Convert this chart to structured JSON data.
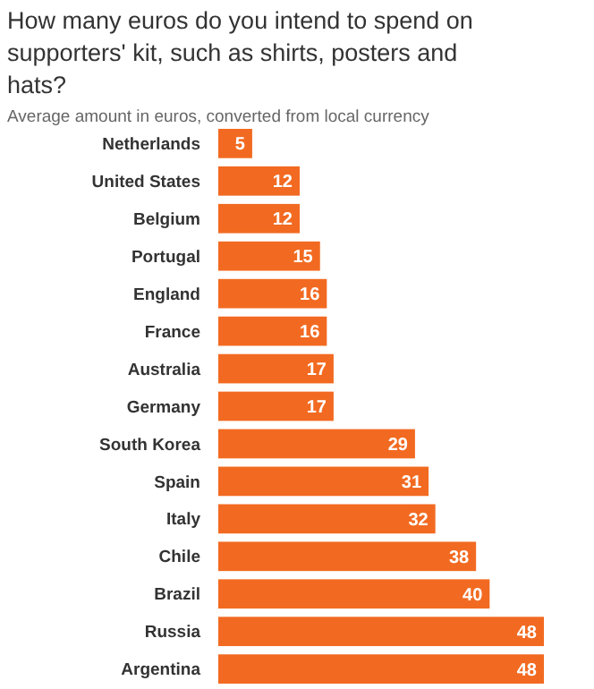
{
  "chart_data": {
    "type": "bar",
    "orientation": "horizontal",
    "title": "How many euros do you intend to spend on supporters' kit, such as shirts, posters and hats?",
    "subtitle": "Average amount in euros, converted from local currency",
    "categories": [
      "Netherlands",
      "United States",
      "Belgium",
      "Portugal",
      "England",
      "France",
      "Australia",
      "Germany",
      "South Korea",
      "Spain",
      "Italy",
      "Chile",
      "Brazil",
      "Russia",
      "Argentina"
    ],
    "values": [
      5,
      12,
      12,
      15,
      16,
      16,
      17,
      17,
      29,
      31,
      32,
      38,
      40,
      48,
      48
    ],
    "color": "#f26a21",
    "data_labels": true
  }
}
